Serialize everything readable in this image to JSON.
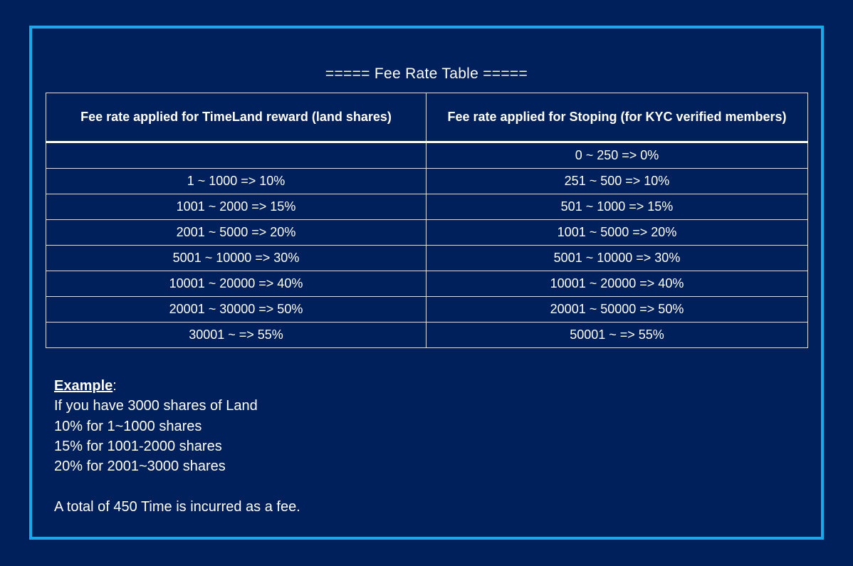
{
  "title": "===== Fee Rate Table =====",
  "table": {
    "headers": [
      "Fee rate applied for TimeLand reward (land shares)",
      "Fee rate applied for Stoping (for KYC verified members)"
    ],
    "rows": [
      [
        "",
        "0 ~ 250 => 0%"
      ],
      [
        "1 ~ 1000 => 10%",
        "251 ~ 500 => 10%"
      ],
      [
        "1001 ~ 2000 => 15%",
        "501 ~ 1000 => 15%"
      ],
      [
        "2001 ~ 5000 => 20%",
        "1001 ~ 5000 => 20%"
      ],
      [
        "5001 ~ 10000 => 30%",
        "5001 ~ 10000 => 30%"
      ],
      [
        "10001 ~ 20000 => 40%",
        "10001 ~ 20000 => 40%"
      ],
      [
        "20001 ~ 30000 => 50%",
        "20001 ~ 50000 => 50%"
      ],
      [
        "30001 ~ => 55%",
        "50001 ~ => 55%"
      ]
    ]
  },
  "example": {
    "heading": "Example",
    "heading_suffix": ":",
    "lines": [
      "If you have 3000 shares of Land",
      "10% for 1~1000 shares",
      "15% for 1001-2000 shares",
      "20% for 2001~3000 shares"
    ],
    "total": "A total of 450 Time is incurred as a fee."
  },
  "colors": {
    "background": "#00205c",
    "frame_border": "#1aa7ec",
    "text": "#ffffff"
  }
}
